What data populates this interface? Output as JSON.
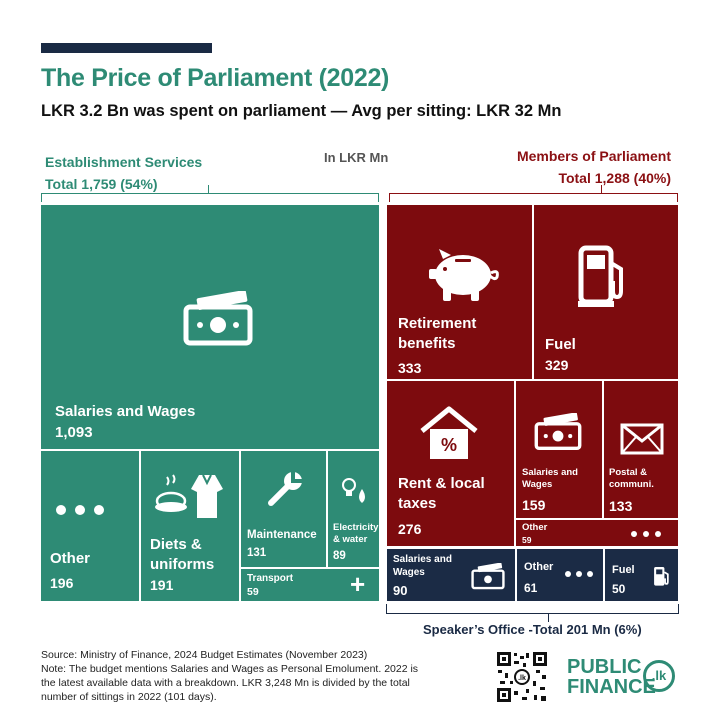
{
  "header": {
    "title": "The Price of Parliament (2022)",
    "subtitle": "LKR 3.2 Bn was spent on parliament — Avg per sitting: LKR 32 Mn"
  },
  "groups": {
    "establishment": {
      "name": "Establishment Services",
      "total": "Total 1,759 (54%)"
    },
    "unit": "In LKR Mn",
    "mps": {
      "name": "Members of Parliament",
      "total": "Total 1,288 (40%)"
    },
    "speaker": "Speaker’s Office -Total 201 Mn (6%)"
  },
  "chart_data": {
    "type": "treemap",
    "title": "The Price of Parliament (2022)",
    "unit": "LKR Mn",
    "groups": [
      {
        "name": "Establishment Services",
        "total": 1759,
        "share_pct": 54,
        "items": [
          {
            "label": "Salaries and Wages",
            "value": 1093,
            "value_text": "1,093",
            "icon": "cash-icon"
          },
          {
            "label": "Other",
            "value": 196,
            "value_text": "196",
            "icon": "dots-icon"
          },
          {
            "label": "Diets & uniforms",
            "value": 191,
            "value_text": "191",
            "icon": "food-uniform-icon"
          },
          {
            "label": "Maintenance",
            "value": 131,
            "value_text": "131",
            "icon": "wrench-icon"
          },
          {
            "label": "Electricity & water",
            "value": 89,
            "value_text": "89",
            "icon": "bulb-drop-icon"
          },
          {
            "label": "Transport",
            "value": 59,
            "value_text": "59",
            "icon": "plus-icon"
          }
        ]
      },
      {
        "name": "Members of Parliament",
        "total": 1288,
        "share_pct": 40,
        "items": [
          {
            "label": "Retirement benefits",
            "value": 333,
            "value_text": "333",
            "icon": "piggy-bank-icon"
          },
          {
            "label": "Fuel",
            "value": 329,
            "value_text": "329",
            "icon": "fuel-pump-icon"
          },
          {
            "label": "Rent & local taxes",
            "value": 276,
            "value_text": "276",
            "icon": "house-percent-icon"
          },
          {
            "label": "Salaries and Wages",
            "value": 159,
            "value_text": "159",
            "icon": "cash-icon"
          },
          {
            "label": "Postal & communi.",
            "value": 133,
            "value_text": "133",
            "icon": "envelope-icon"
          },
          {
            "label": "Other",
            "value": 59,
            "value_text": "59",
            "icon": "dots-icon"
          }
        ]
      },
      {
        "name": "Speaker’s Office",
        "total": 201,
        "share_pct": 6,
        "items": [
          {
            "label": "Salaries and Wages",
            "value": 90,
            "value_text": "90",
            "icon": "cash-icon"
          },
          {
            "label": "Other",
            "value": 61,
            "value_text": "61",
            "icon": "dots-icon"
          },
          {
            "label": "Fuel",
            "value": 50,
            "value_text": "50",
            "icon": "fuel-pump-icon"
          }
        ]
      }
    ]
  },
  "footer": {
    "source": "Source: Ministry of Finance, 2024 Budget Estimates (November 2023)",
    "note1": "Note: The budget mentions Salaries and Wages as Personal Emolument. 2022 is",
    "note2": "the latest available data with a breakdown. LKR 3,248 Mn is divided by the total",
    "note3": "number of sittings in 2022 (101 days)."
  },
  "logo": {
    "line1": "PUBLIC",
    "line2": "FINANCE",
    "badge": ".lk"
  },
  "colors": {
    "establishment": "#2e8b75",
    "mps": "#7d0b0e",
    "speaker": "#1b2b45",
    "navy": "#1a2a44"
  }
}
